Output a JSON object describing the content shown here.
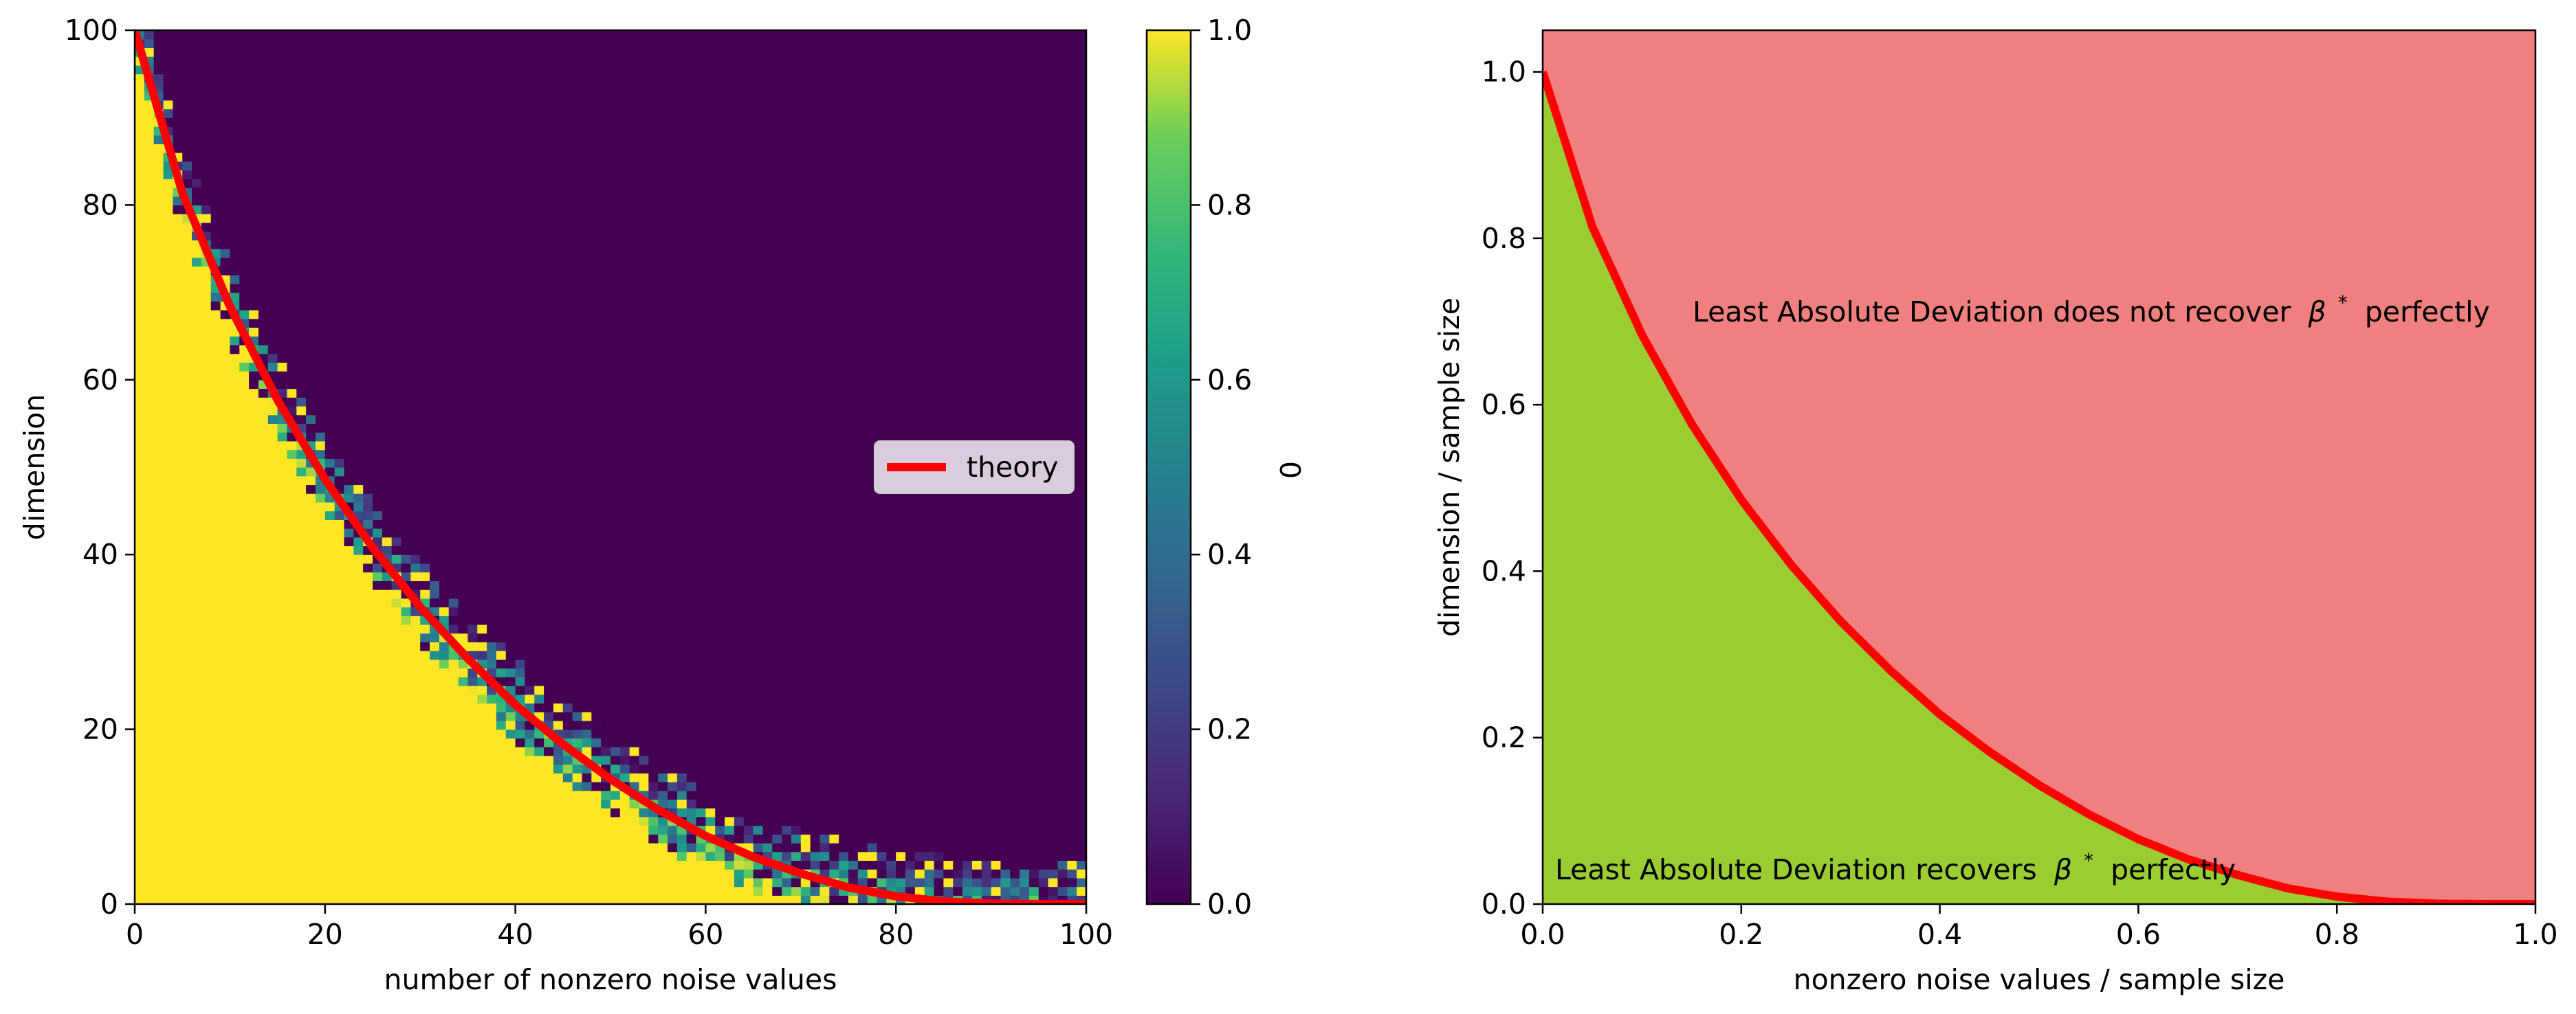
{
  "chart_data": [
    {
      "type": "heatmap",
      "title": "",
      "xlabel": "number of nonzero noise values",
      "ylabel": "dimension",
      "xlim": [
        0,
        100
      ],
      "ylim": [
        0,
        100
      ],
      "x_ticks": [
        "0",
        "20",
        "40",
        "60",
        "80",
        "100"
      ],
      "y_ticks": [
        "0",
        "20",
        "40",
        "60",
        "80",
        "100"
      ],
      "colormap": "viridis",
      "colorbar": {
        "label": "0",
        "range": [
          0.0,
          1.0
        ],
        "ticks": [
          "0.0",
          "0.2",
          "0.4",
          "0.6",
          "0.8",
          "1.0"
        ]
      },
      "grid_size": [
        100,
        100
      ],
      "value_description": "Fraction of trials with perfect recovery; ~1.0 (yellow) below the theory curve, ~0.0 (purple) above it, with a noisy transition band of intermediate values along the curve.",
      "transition_band_width": 12,
      "series": [
        {
          "name": "theory",
          "color": "#ff0000",
          "x": [
            0,
            5,
            10,
            15,
            20,
            25,
            30,
            35,
            40,
            45,
            50,
            55,
            60,
            65,
            70,
            75,
            80,
            85,
            90,
            95,
            100
          ],
          "values": [
            100,
            81.4,
            68.4,
            57.7,
            48.6,
            40.8,
            34.0,
            28.1,
            22.8,
            18.3,
            14.3,
            10.8,
            7.8,
            5.4,
            3.5,
            1.9,
            0.9,
            0.3,
            0.05,
            0,
            0
          ]
        }
      ],
      "legend": {
        "entries": [
          "theory"
        ],
        "placement": "center-right"
      }
    },
    {
      "type": "area",
      "title": "",
      "xlabel": "nonzero noise values / sample size",
      "ylabel": "dimension / sample size",
      "xlim": [
        0.0,
        1.0
      ],
      "ylim": [
        0.0,
        1.05
      ],
      "x_ticks": [
        "0.0",
        "0.2",
        "0.4",
        "0.6",
        "0.8",
        "1.0"
      ],
      "y_ticks": [
        "0.0",
        "0.2",
        "0.4",
        "0.6",
        "0.8",
        "1.0"
      ],
      "region_colors": {
        "below": "#9acd32",
        "above": "#f08080"
      },
      "boundary_color": "#ff0000",
      "x": [
        0,
        0.05,
        0.1,
        0.15,
        0.2,
        0.25,
        0.3,
        0.35,
        0.4,
        0.45,
        0.5,
        0.55,
        0.6,
        0.65,
        0.7,
        0.75,
        0.8,
        0.85,
        0.9,
        0.95,
        1.0
      ],
      "values": [
        1.0,
        0.814,
        0.684,
        0.577,
        0.486,
        0.408,
        0.34,
        0.281,
        0.228,
        0.183,
        0.143,
        0.108,
        0.078,
        0.054,
        0.035,
        0.019,
        0.009,
        0.003,
        0.0005,
        0.0,
        0.0
      ],
      "annotations": [
        {
          "text": "Least Absolute Deviation does not recover",
          "symbol": "β",
          "sup": "*",
          "after": "perfectly",
          "region": "above"
        },
        {
          "text": "Least Absolute Deviation recovers",
          "symbol": "β",
          "sup": "*",
          "after": "perfectly",
          "region": "below"
        }
      ]
    }
  ]
}
